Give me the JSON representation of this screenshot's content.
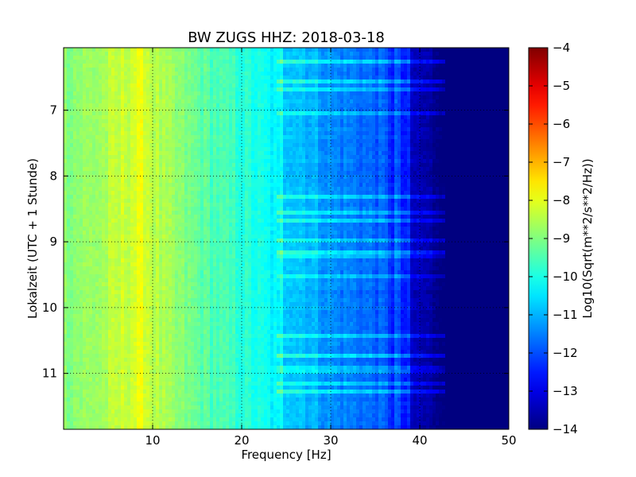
{
  "chart_data": {
    "type": "heatmap",
    "title": "BW ZUGS HHZ: 2018-03-18",
    "xlabel": "Frequency [Hz]",
    "ylabel": "Lokalzeit (UTC + 1 Stunde)",
    "xlim": [
      0,
      50
    ],
    "ylim": [
      6.05,
      11.85
    ],
    "y_inverted": true,
    "x_ticks": [
      10,
      20,
      30,
      40,
      50
    ],
    "y_ticks": [
      7,
      8,
      9,
      10,
      11
    ],
    "grid": true,
    "colorscale": "jet",
    "colorbar": {
      "label": "Log10(Sqrt(m**2/s**2/Hz))",
      "min": -14,
      "max": -4,
      "ticks": [
        -4,
        -5,
        -6,
        -7,
        -8,
        -9,
        -10,
        -11,
        -12,
        -13,
        -14
      ]
    },
    "spectrum_profile": {
      "frequency_hz": [
        0,
        2,
        4,
        6,
        8,
        9,
        10,
        12,
        14,
        16,
        20,
        24,
        24.5,
        25,
        28,
        30,
        33,
        36,
        37,
        38,
        40,
        41,
        43,
        50
      ],
      "log_amplitude": [
        -8.9,
        -8.8,
        -8.7,
        -8.4,
        -8.1,
        -8.0,
        -8.4,
        -8.8,
        -9.1,
        -9.4,
        -9.8,
        -10.4,
        -10.9,
        -10.6,
        -11.0,
        -11.4,
        -11.6,
        -11.9,
        -12.4,
        -13.3,
        -13.5,
        -13.7,
        -14.0,
        -14.0
      ]
    }
  }
}
